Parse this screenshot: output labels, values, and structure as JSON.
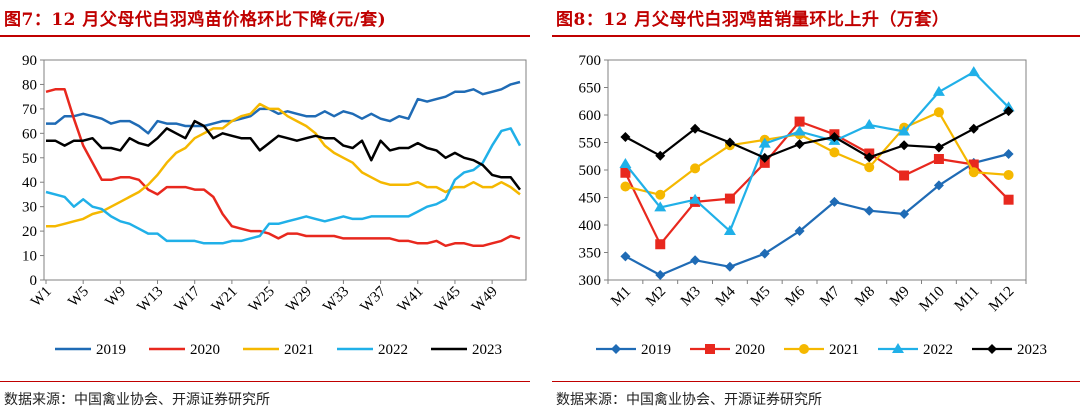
{
  "charts": [
    {
      "title": "图7：12 月父母代白羽鸡苗价格环比下降(元/套)",
      "source": "数据来源：中国禽业协会、开源证券研究所",
      "chart_data": {
        "type": "line",
        "title": "12 月父母代白羽鸡苗价格环比下降(元/套)",
        "xlabel": "",
        "ylabel": "元/套",
        "ylim": [
          0,
          90
        ],
        "yticks": [
          0,
          10,
          20,
          30,
          40,
          50,
          60,
          70,
          80,
          90
        ],
        "x": [
          "W1",
          "W2",
          "W3",
          "W4",
          "W5",
          "W6",
          "W7",
          "W8",
          "W9",
          "W10",
          "W11",
          "W12",
          "W13",
          "W14",
          "W15",
          "W16",
          "W17",
          "W18",
          "W19",
          "W20",
          "W21",
          "W22",
          "W23",
          "W24",
          "W25",
          "W26",
          "W27",
          "W28",
          "W29",
          "W30",
          "W31",
          "W32",
          "W33",
          "W34",
          "W35",
          "W36",
          "W37",
          "W38",
          "W39",
          "W40",
          "W41",
          "W42",
          "W43",
          "W44",
          "W45",
          "W46",
          "W47",
          "W48",
          "W49",
          "W50",
          "W51",
          "W52"
        ],
        "tick_labels": [
          "W1",
          "W5",
          "W9",
          "W13",
          "W17",
          "W21",
          "W25",
          "W29",
          "W33",
          "W37",
          "W41",
          "W45",
          "W49"
        ],
        "tick_indices": [
          0,
          4,
          8,
          12,
          16,
          20,
          24,
          28,
          32,
          36,
          40,
          44,
          48
        ],
        "legend": [
          "2019",
          "2020",
          "2021",
          "2022",
          "2023"
        ],
        "series": [
          {
            "name": "2019",
            "color": "#1f6bb5",
            "values": [
              64,
              64,
              67,
              67,
              68,
              67,
              66,
              64,
              65,
              65,
              63,
              60,
              65,
              64,
              64,
              63,
              63,
              63,
              64,
              65,
              65,
              66,
              67,
              70,
              70,
              68,
              69,
              68,
              67,
              67,
              69,
              67,
              69,
              68,
              66,
              68,
              66,
              65,
              67,
              66,
              74,
              73,
              74,
              75,
              77,
              77,
              78,
              76,
              77,
              78,
              80,
              81
            ]
          },
          {
            "name": "2020",
            "color": "#e8281e",
            "values": [
              77,
              78,
              78,
              66,
              55,
              48,
              41,
              41,
              42,
              42,
              41,
              37,
              35,
              38,
              38,
              38,
              37,
              37,
              34,
              27,
              22,
              21,
              20,
              20,
              19,
              17,
              19,
              19,
              18,
              18,
              18,
              18,
              17,
              17,
              17,
              17,
              17,
              17,
              16,
              16,
              15,
              15,
              16,
              14,
              15,
              15,
              14,
              14,
              15,
              16,
              18,
              17
            ]
          },
          {
            "name": "2021",
            "color": "#f5b800",
            "values": [
              22,
              22,
              23,
              24,
              25,
              27,
              28,
              30,
              32,
              34,
              36,
              39,
              43,
              48,
              52,
              54,
              58,
              60,
              62,
              62,
              65,
              67,
              68,
              72,
              70,
              70,
              67,
              65,
              63,
              60,
              55,
              52,
              50,
              48,
              44,
              42,
              40,
              39,
              39,
              39,
              40,
              38,
              38,
              36,
              38,
              38,
              40,
              38,
              38,
              40,
              38,
              35
            ]
          },
          {
            "name": "2022",
            "color": "#20b0e8",
            "values": [
              36,
              35,
              34,
              30,
              33,
              30,
              29,
              26,
              24,
              23,
              21,
              19,
              19,
              16,
              16,
              16,
              16,
              15,
              15,
              15,
              16,
              16,
              17,
              18,
              23,
              23,
              24,
              25,
              26,
              25,
              24,
              25,
              26,
              25,
              25,
              26,
              26,
              26,
              26,
              26,
              28,
              30,
              31,
              33,
              41,
              44,
              45,
              48,
              55,
              61,
              62,
              55
            ]
          },
          {
            "name": "2023",
            "color": "#000000",
            "values": [
              57,
              57,
              55,
              57,
              57,
              58,
              54,
              54,
              53,
              58,
              56,
              55,
              58,
              62,
              60,
              58,
              65,
              63,
              58,
              60,
              59,
              58,
              58,
              53,
              56,
              59,
              58,
              57,
              58,
              59,
              58,
              58,
              55,
              54,
              57,
              49,
              57,
              53,
              54,
              54,
              56,
              54,
              53,
              50,
              52,
              50,
              49,
              47,
              43,
              42,
              42,
              37
            ]
          }
        ]
      }
    },
    {
      "title": "图8：12 月父母代白羽鸡苗销量环比上升（万套）",
      "source": "数据来源：中国禽业协会、开源证券研究所",
      "chart_data": {
        "type": "line",
        "title": "12 月父母代白羽鸡苗销量环比上升（万套）",
        "xlabel": "",
        "ylabel": "万套",
        "ylim": [
          300,
          700
        ],
        "yticks": [
          300,
          350,
          400,
          450,
          500,
          550,
          600,
          650,
          700
        ],
        "categories": [
          "M1",
          "M2",
          "M3",
          "M4",
          "M5",
          "M6",
          "M7",
          "M8",
          "M9",
          "M10",
          "M11",
          "M12"
        ],
        "legend": [
          "2019",
          "2020",
          "2021",
          "2022",
          "2023"
        ],
        "series": [
          {
            "name": "2019",
            "color": "#1f6bb5",
            "marker": "diamond",
            "values": [
              343,
              309,
              336,
              324,
              348,
              389,
              442,
              426,
              420,
              472,
              513,
              529
            ]
          },
          {
            "name": "2020",
            "color": "#e8281e",
            "marker": "square",
            "values": [
              495,
              365,
              442,
              448,
              513,
              588,
              565,
              530,
              490,
              520,
              510,
              446
            ]
          },
          {
            "name": "2021",
            "color": "#f5b800",
            "marker": "circle",
            "values": [
              470,
              455,
              503,
              545,
              555,
              565,
              532,
              505,
              577,
              605,
              496,
              491
            ]
          },
          {
            "name": "2022",
            "color": "#20b0e8",
            "marker": "triangle",
            "values": [
              511,
              432,
              446,
              389,
              548,
              570,
              553,
              582,
              570,
              642,
              678,
              614
            ]
          },
          {
            "name": "2023",
            "color": "#000000",
            "marker": "diamond",
            "values": [
              560,
              526,
              575,
              550,
              522,
              547,
              560,
              523,
              545,
              541,
              575,
              607
            ]
          }
        ]
      }
    }
  ]
}
